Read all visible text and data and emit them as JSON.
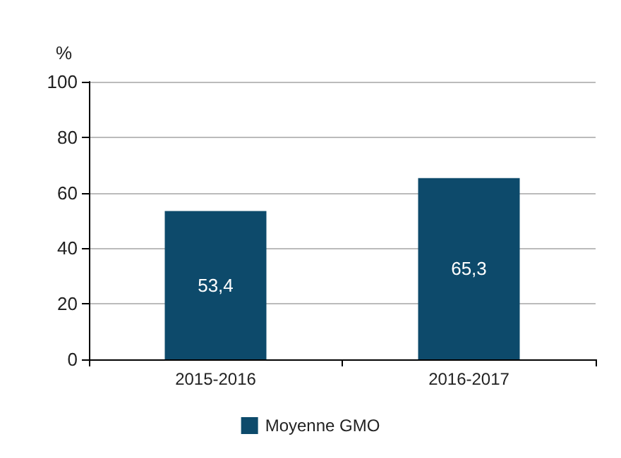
{
  "chart_data": {
    "type": "bar",
    "ylabel": "%",
    "categories": [
      "2015-2016",
      "2016-2017"
    ],
    "series": [
      {
        "name": "Moyenne GMO",
        "color": "#0d4a6b",
        "values": [
          53.4,
          65.3
        ],
        "value_labels": [
          "53,4",
          "65,3"
        ]
      }
    ],
    "ylim": [
      0,
      100
    ],
    "yticks": [
      0,
      20,
      40,
      60,
      80,
      100
    ],
    "grid": "y",
    "legend": "bottom"
  }
}
